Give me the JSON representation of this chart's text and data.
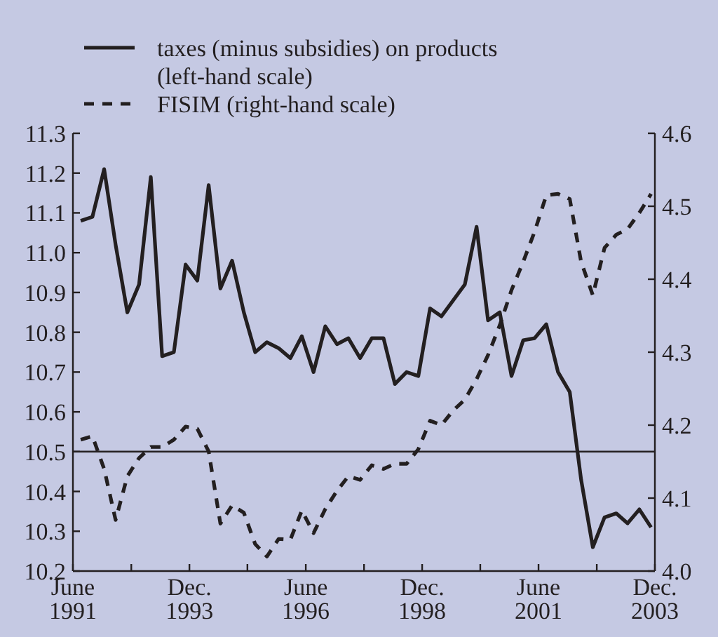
{
  "chart_data": {
    "type": "line",
    "legend": "top",
    "grid": false,
    "x": [
      "1991-08",
      "1991-11",
      "1992-02",
      "1992-05",
      "1992-08",
      "1992-11",
      "1993-02",
      "1993-05",
      "1993-08",
      "1993-11",
      "1994-02",
      "1994-05",
      "1994-08",
      "1994-11",
      "1995-02",
      "1995-05",
      "1995-08",
      "1995-11",
      "1996-02",
      "1996-05",
      "1996-08",
      "1996-11",
      "1997-02",
      "1997-05",
      "1997-08",
      "1997-11",
      "1998-02",
      "1998-05",
      "1998-08",
      "1998-11",
      "1999-02",
      "1999-05",
      "1999-08",
      "1999-11",
      "2000-02",
      "2000-05",
      "2000-08",
      "2000-11",
      "2001-02",
      "2001-05",
      "2001-08",
      "2001-11",
      "2002-02",
      "2002-05",
      "2002-08",
      "2002-11",
      "2003-02",
      "2003-05",
      "2003-08",
      "2003-11"
    ],
    "xlim": [
      "1991-06",
      "2003-12"
    ],
    "xticks": [
      {
        "value": "1991-06",
        "label": "June 1991"
      },
      {
        "value": "1992-09",
        "label": null
      },
      {
        "value": "1993-12",
        "label": "Dec. 1993"
      },
      {
        "value": "1995-03",
        "label": null
      },
      {
        "value": "1996-06",
        "label": "June 1996"
      },
      {
        "value": "1997-09",
        "label": null
      },
      {
        "value": "1998-12",
        "label": "Dec. 1998"
      },
      {
        "value": "2000-03",
        "label": null
      },
      {
        "value": "2001-06",
        "label": "June 2001"
      },
      {
        "value": "2002-09",
        "label": null
      },
      {
        "value": "2003-12",
        "label": "Dec. 2003"
      }
    ],
    "ylim": [
      10.2,
      11.3
    ],
    "yticks": [
      {
        "value": 10.2,
        "label": "10.2"
      },
      {
        "value": 10.3,
        "label": "10.3"
      },
      {
        "value": 10.4,
        "label": "10.4"
      },
      {
        "value": 10.5,
        "label": "10.5"
      },
      {
        "value": 10.6,
        "label": "10.6"
      },
      {
        "value": 10.7,
        "label": "10.7"
      },
      {
        "value": 10.8,
        "label": "10.8"
      },
      {
        "value": 10.9,
        "label": "10.9"
      },
      {
        "value": 11.0,
        "label": "11.0"
      },
      {
        "value": 11.1,
        "label": "11.1"
      },
      {
        "value": 11.2,
        "label": "11.2"
      },
      {
        "value": 11.3,
        "label": "11.3"
      }
    ],
    "y2lim": [
      4.0,
      4.6
    ],
    "y2ticks": [
      {
        "value": 4.0,
        "label": "4.0"
      },
      {
        "value": 4.1,
        "label": "4.1"
      },
      {
        "value": 4.2,
        "label": "4.2"
      },
      {
        "value": 4.3,
        "label": "4.3"
      },
      {
        "value": 4.4,
        "label": "4.4"
      },
      {
        "value": 4.5,
        "label": "4.5"
      },
      {
        "value": 4.6,
        "label": "4.6"
      }
    ],
    "ref_lines": [
      {
        "axis": "y",
        "value": 10.5,
        "color": "#231f20"
      }
    ],
    "series": [
      {
        "name": "taxes (minus subsidies) on products (left-hand scale)",
        "color": "#231f20",
        "line_style": "solid",
        "values": [
          11.08,
          11.09,
          11.21,
          11.02,
          10.85,
          10.92,
          11.19,
          10.74,
          10.75,
          10.97,
          10.93,
          11.17,
          10.91,
          10.98,
          10.85,
          10.75,
          10.775,
          10.76,
          10.735,
          10.79,
          10.7,
          10.815,
          10.77,
          10.785,
          10.735,
          10.785,
          10.785,
          10.67,
          10.7,
          10.69,
          10.86,
          10.84,
          10.88,
          10.92,
          11.065,
          10.83,
          10.85,
          10.69,
          10.78,
          10.785,
          10.82,
          10.7,
          10.65,
          10.43,
          10.26,
          10.335,
          10.345,
          10.32,
          10.355,
          10.31
        ]
      },
      {
        "name": "FISIM (right-hand scale)",
        "color": "#231f20",
        "line_style": "dashed",
        "axis": "y2",
        "values": [
          4.18,
          4.185,
          4.14,
          4.07,
          4.13,
          4.155,
          4.17,
          4.17,
          4.18,
          4.198,
          4.195,
          4.164,
          4.065,
          4.09,
          4.08,
          4.037,
          4.02,
          4.044,
          4.043,
          4.083,
          4.052,
          4.085,
          4.11,
          4.13,
          4.125,
          4.145,
          4.14,
          4.147,
          4.147,
          4.167,
          4.206,
          4.2,
          4.22,
          4.235,
          4.263,
          4.296,
          4.337,
          4.385,
          4.424,
          4.465,
          4.515,
          4.517,
          4.51,
          4.424,
          4.378,
          4.443,
          4.461,
          4.469,
          4.491,
          4.517
        ]
      }
    ]
  }
}
